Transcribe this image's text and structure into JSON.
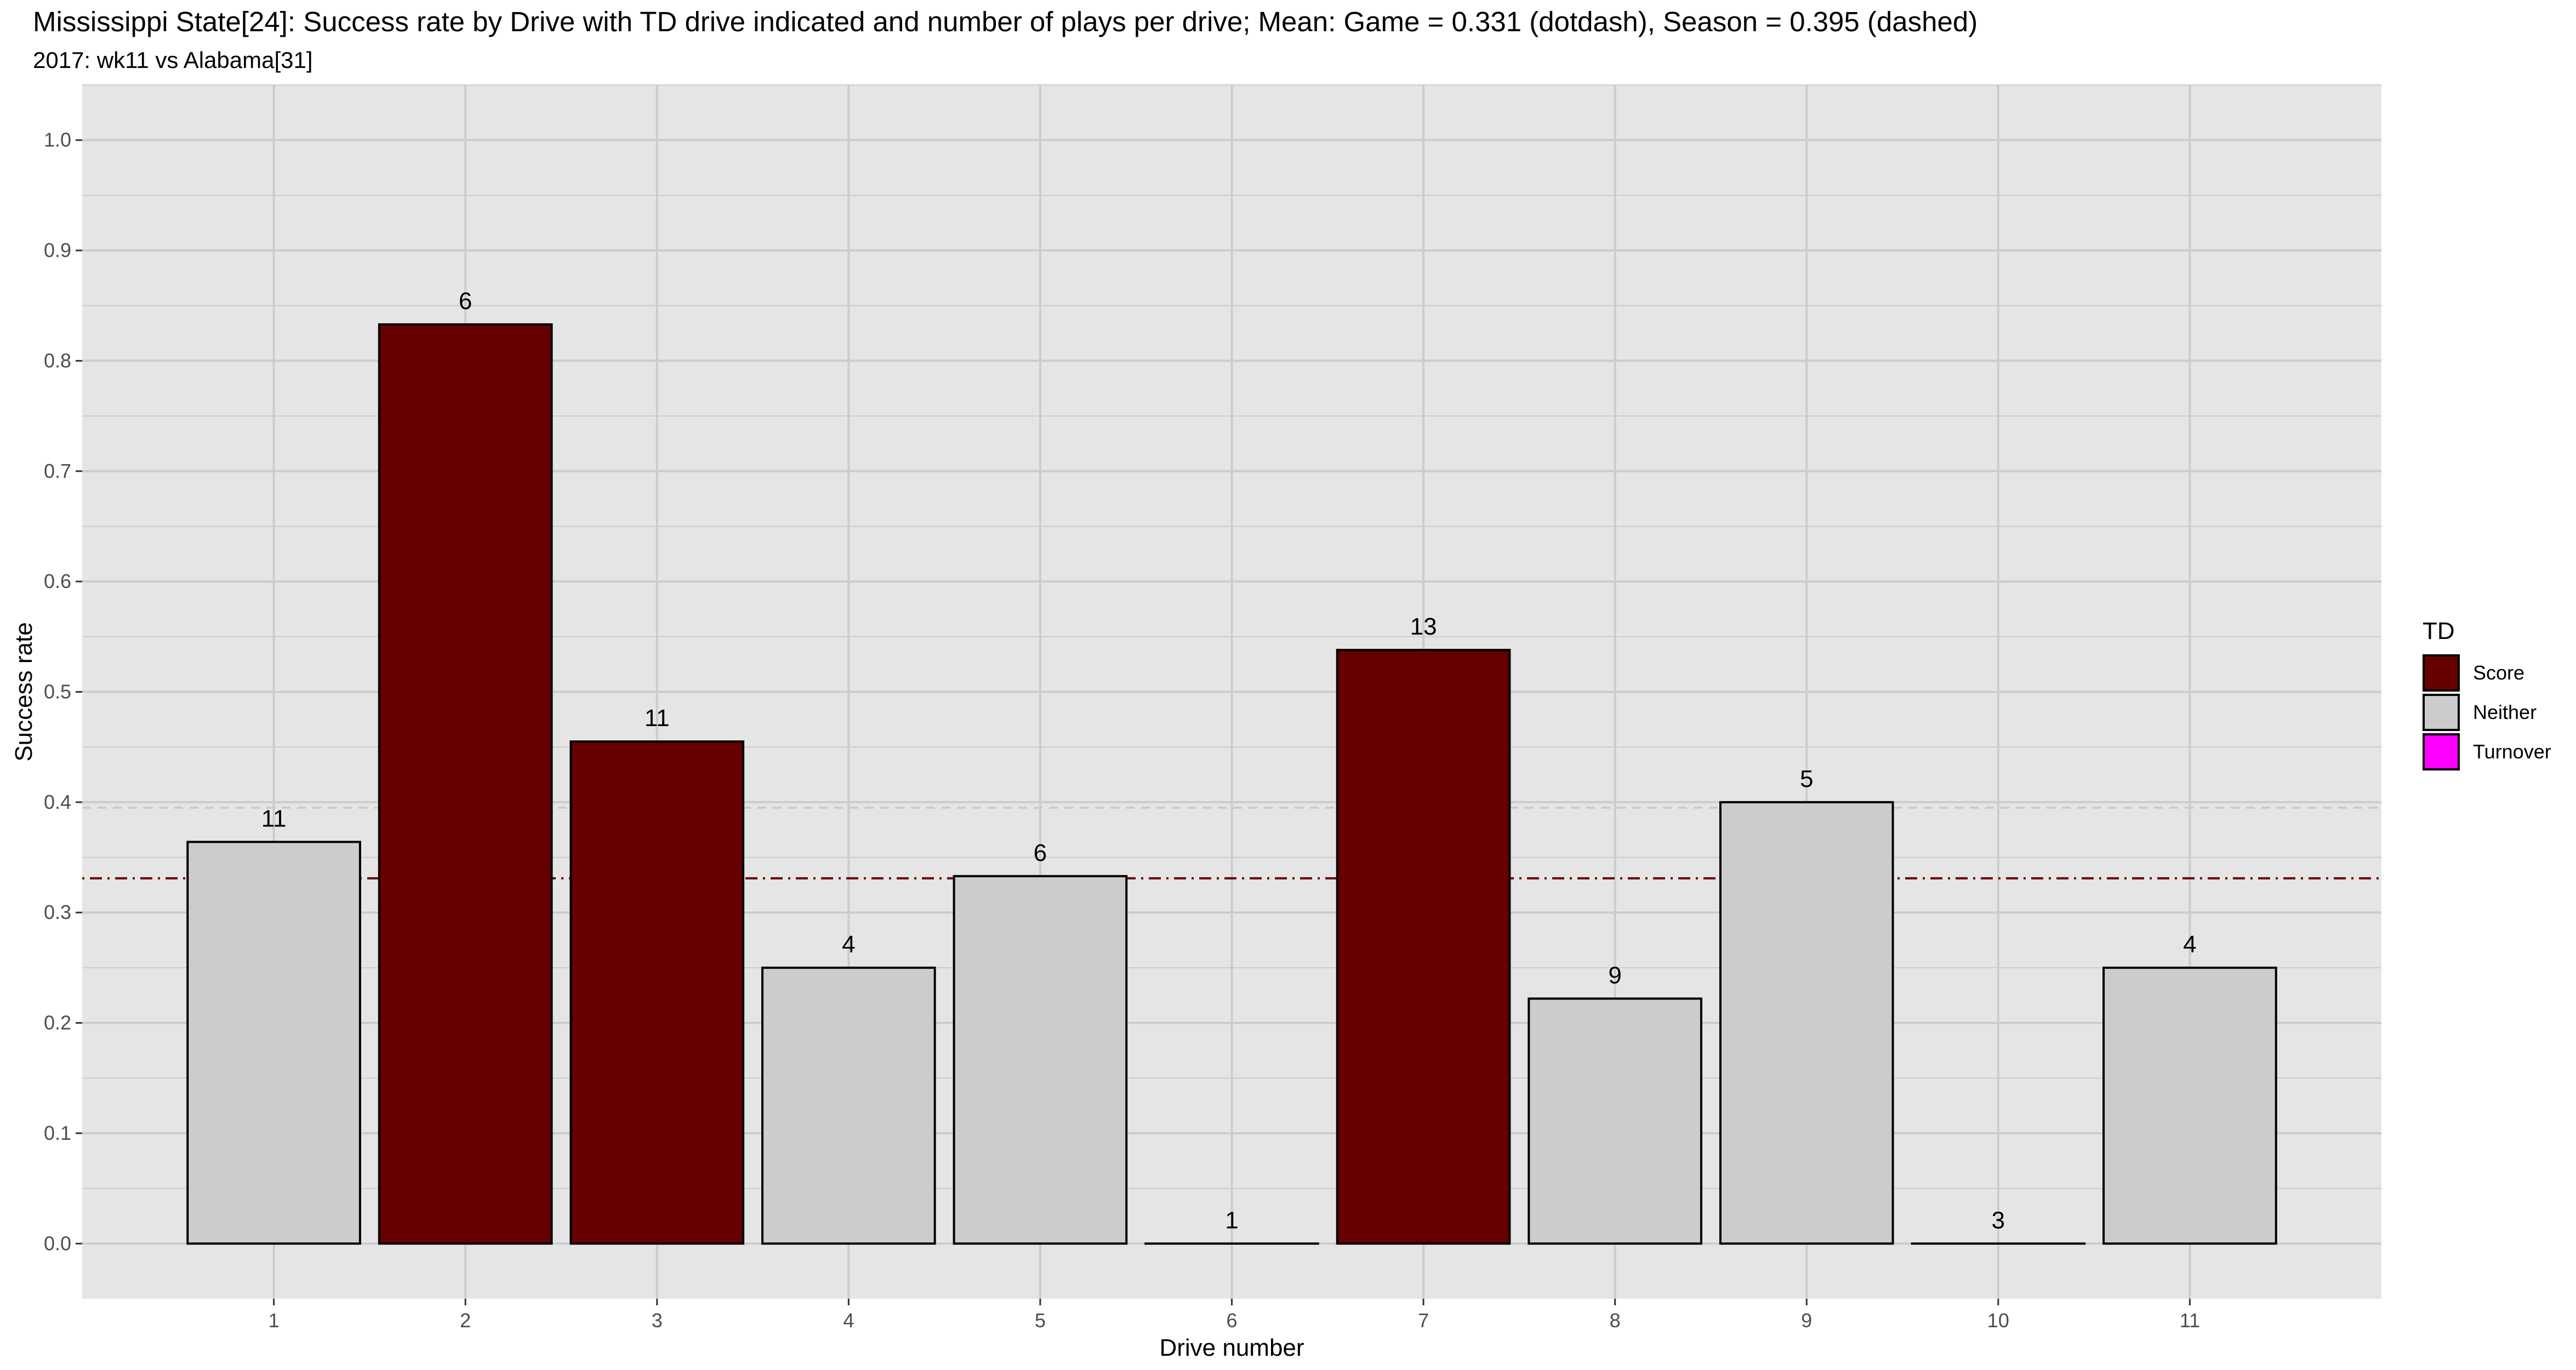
{
  "chart_data": {
    "type": "bar",
    "title": "Mississippi State[24]: Success rate by Drive with TD drive indicated and number of plays per drive; Mean: Game = 0.331 (dotdash), Season = 0.395 (dashed)",
    "subtitle": "2017: wk11 vs Alabama[31]",
    "xlabel": "Drive number",
    "ylabel": "Success rate",
    "categories": [
      "1",
      "2",
      "3",
      "4",
      "5",
      "6",
      "7",
      "8",
      "9",
      "10",
      "11"
    ],
    "values": [
      0.364,
      0.833,
      0.455,
      0.25,
      0.333,
      0.0,
      0.538,
      0.222,
      0.4,
      0.0,
      0.25
    ],
    "plays": [
      "11",
      "6",
      "11",
      "4",
      "6",
      "1",
      "13",
      "9",
      "5",
      "3",
      "4"
    ],
    "td": [
      "Neither",
      "Score",
      "Score",
      "Neither",
      "Neither",
      "Neither",
      "Score",
      "Neither",
      "Neither",
      "Neither",
      "Neither"
    ],
    "ylim": [
      -0.05,
      1.05
    ],
    "yticks": [
      "0.0",
      "0.1",
      "0.2",
      "0.3",
      "0.4",
      "0.5",
      "0.6",
      "0.7",
      "0.8",
      "0.9",
      "1.0"
    ],
    "mean_game": 0.331,
    "mean_season": 0.395,
    "grid": true,
    "legend": {
      "title": "TD",
      "position": "right",
      "entries": [
        {
          "label": "Score",
          "color": "#660000"
        },
        {
          "label": "Neither",
          "color": "#cccccc"
        },
        {
          "label": "Turnover",
          "color": "#ff00ff"
        }
      ]
    },
    "colors": {
      "panel_background": "#e5e5e5",
      "grid": "#cccccc",
      "mean_game_line": "#660000",
      "mean_season_line": "#cccccc"
    }
  }
}
